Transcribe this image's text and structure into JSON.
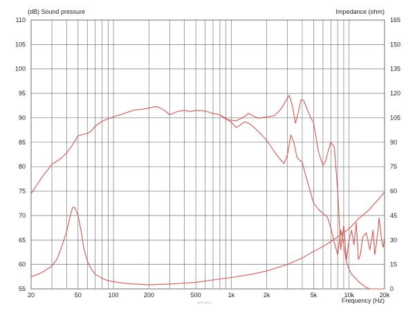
{
  "chart_data": {
    "type": "line",
    "x_scale": "log",
    "xlim": [
      20,
      20000
    ],
    "left_axis": {
      "label": "(dB)  Sound pressure",
      "range": [
        55,
        110
      ],
      "ticks": [
        55,
        60,
        65,
        70,
        75,
        80,
        85,
        90,
        95,
        100,
        105,
        110
      ]
    },
    "right_axis": {
      "label": "Impedance  (ohm)",
      "range": [
        0,
        165
      ],
      "ticks": [
        0,
        15,
        30,
        45,
        60,
        75,
        90,
        105,
        120,
        135,
        150,
        165
      ]
    },
    "x_axis": {
      "label": "Frequency  (Hz)",
      "ticks": [
        20,
        50,
        100,
        200,
        500,
        1000,
        2000,
        5000,
        10000,
        20000
      ],
      "tick_labels": [
        "20",
        "50",
        "100",
        "200",
        "500",
        "1k",
        "2k",
        "5k",
        "10k",
        "20k"
      ]
    },
    "grid": true,
    "line_color": "#d9534f",
    "series": [
      {
        "axis": "left",
        "x": [
          20,
          22,
          25,
          28,
          30,
          35,
          40,
          45,
          50,
          55,
          60,
          65,
          70,
          80,
          90,
          100,
          120,
          150,
          170,
          200,
          230,
          250,
          280,
          300,
          350,
          400,
          450,
          500,
          600,
          700,
          800,
          900,
          1000,
          1100,
          1200,
          1300,
          1400,
          1500,
          1700,
          2000,
          2300,
          2500,
          2800,
          3000,
          3200,
          3400,
          3600,
          3800,
          4000,
          4300,
          4600,
          5000,
          5500,
          6000,
          6500,
          7000,
          7500,
          8000,
          8500,
          9000,
          9500,
          10000,
          10500,
          11000,
          12000,
          13000,
          14000,
          15000,
          16000,
          17000,
          18000,
          19000,
          20000
        ],
        "y": [
          74.5,
          76,
          78,
          79.5,
          80.5,
          81.5,
          82.8,
          84.5,
          86.3,
          86.6,
          86.8,
          87.3,
          88.3,
          89.3,
          89.8,
          90.2,
          90.8,
          91.6,
          91.7,
          92.0,
          92.3,
          92.0,
          91.3,
          90.6,
          91.3,
          91.5,
          91.3,
          91.5,
          91.4,
          90.9,
          90.6,
          89.9,
          89.1,
          88.0,
          88.6,
          89.2,
          88.9,
          88.4,
          87.2,
          85.4,
          83.2,
          82.0,
          80.6,
          82.5,
          86.5,
          85.0,
          82.0,
          81.3,
          81.0,
          78.0,
          75.6,
          72.5,
          71.3,
          70.4,
          69.8,
          67.5,
          64.5,
          62.0,
          67.0,
          64.0,
          60.5,
          59.0,
          58.0,
          57.5,
          56.5,
          55.8,
          55.3,
          55.0,
          55.0,
          55.0,
          55.0,
          55.0,
          55.0
        ]
      },
      {
        "axis": "left",
        "x": [
          800,
          900,
          1000,
          1100,
          1200,
          1300,
          1400,
          1500,
          1700,
          2000,
          2300,
          2500,
          2700,
          2900,
          3100,
          3300,
          3500,
          3700,
          3900,
          4100,
          4400,
          4700,
          5000,
          5500,
          6000,
          6300,
          6600,
          7000,
          7500,
          8000,
          8500,
          9000,
          9500,
          10000,
          10500,
          11000,
          11500,
          12000,
          12500,
          13000,
          14000,
          15000,
          16000,
          16500,
          17000,
          17500,
          18000,
          18500,
          19000,
          19500,
          20000
        ],
        "y": [
          90.6,
          89.7,
          89.5,
          89.4,
          89.8,
          90.3,
          90.9,
          90.5,
          89.9,
          90.2,
          90.4,
          91.2,
          92.1,
          93.5,
          94.6,
          92.5,
          88.9,
          91.0,
          93.7,
          93.6,
          91.8,
          90.1,
          89.0,
          83.0,
          80.3,
          81.0,
          83.0,
          85.0,
          84.0,
          75.0,
          63.0,
          68.0,
          61.0,
          65.0,
          67.0,
          64.0,
          68.5,
          61.0,
          62.0,
          65.5,
          66.5,
          63.0,
          67.0,
          62.0,
          64.0,
          66.5,
          69.5,
          67.0,
          64.5,
          63.5,
          65.5
        ]
      },
      {
        "axis": "right",
        "x": [
          20,
          23,
          26,
          30,
          33,
          36,
          40,
          43,
          45,
          47,
          50,
          53,
          56,
          60,
          65,
          70,
          80,
          90,
          100,
          120,
          150,
          200,
          300,
          500,
          700,
          1000,
          1500,
          2000,
          3000,
          4000,
          5000,
          6000,
          7000,
          8000,
          9000,
          10000,
          11000,
          12000,
          13000,
          14000,
          15000,
          16000,
          17000,
          18000,
          19000,
          20000
        ],
        "y": [
          7.5,
          9,
          11,
          14,
          18,
          25,
          35,
          45,
          50,
          50,
          45,
          36,
          25,
          17,
          12,
          9,
          6.5,
          5,
          4.5,
          3.5,
          3,
          2.5,
          3,
          4,
          5.5,
          7,
          9,
          11,
          15,
          19,
          23,
          26,
          29,
          32,
          34.5,
          37,
          40,
          43,
          45,
          47,
          49,
          51.5,
          53.5,
          55.5,
          57.5,
          59.5
        ]
      }
    ]
  },
  "watermark": "www.hd2.pl"
}
